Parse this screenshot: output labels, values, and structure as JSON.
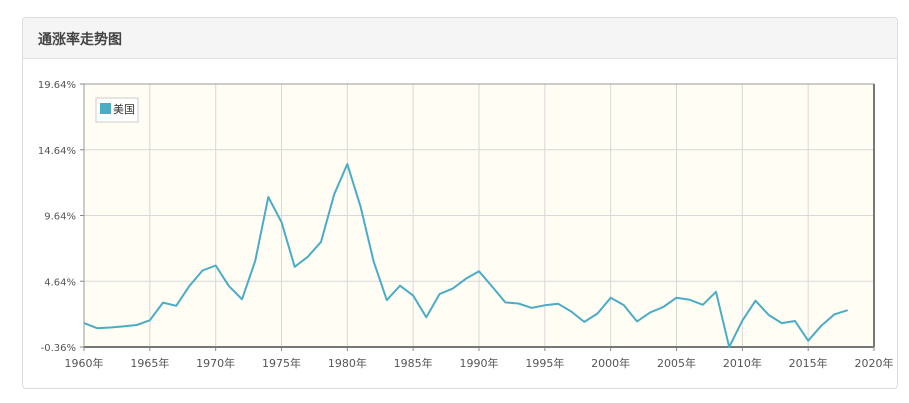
{
  "panel": {
    "title": "通涨率走势图"
  },
  "colors": {
    "line": "#4bacc6",
    "plot_bg": "#fffdf4",
    "grid": "#d8d8d8"
  },
  "chart_data": {
    "type": "line",
    "title": "",
    "xlabel": "",
    "ylabel": "",
    "xlim": [
      1960,
      2020
    ],
    "ylim": [
      -0.36,
      19.64
    ],
    "y_ticks": [
      "19.64%",
      "14.64%",
      "9.64%",
      "4.64%",
      "-0.36%"
    ],
    "y_tick_values": [
      19.64,
      14.64,
      9.64,
      4.64,
      -0.36
    ],
    "x_ticks": [
      "1960年",
      "1965年",
      "1970年",
      "1975年",
      "1980年",
      "1985年",
      "1990年",
      "1995年",
      "2000年",
      "2005年",
      "2010年",
      "2015年",
      "2020年"
    ],
    "x_tick_values": [
      1960,
      1965,
      1970,
      1975,
      1980,
      1985,
      1990,
      1995,
      2000,
      2005,
      2010,
      2015,
      2020
    ],
    "grid": true,
    "legend_position": "top-left",
    "series": [
      {
        "name": "美国",
        "x": [
          1960,
          1961,
          1962,
          1963,
          1964,
          1965,
          1966,
          1967,
          1968,
          1969,
          1970,
          1971,
          1972,
          1973,
          1974,
          1975,
          1976,
          1977,
          1978,
          1979,
          1980,
          1981,
          1982,
          1983,
          1984,
          1985,
          1986,
          1987,
          1988,
          1989,
          1990,
          1991,
          1992,
          1993,
          1994,
          1995,
          1996,
          1997,
          1998,
          1999,
          2000,
          2001,
          2002,
          2003,
          2004,
          2005,
          2006,
          2007,
          2008,
          2009,
          2010,
          2011,
          2012,
          2013,
          2014,
          2015,
          2016,
          2017,
          2018
        ],
        "values": [
          1.46,
          1.07,
          1.12,
          1.21,
          1.31,
          1.67,
          3.02,
          2.77,
          4.27,
          5.46,
          5.84,
          4.29,
          3.27,
          6.18,
          11.05,
          9.14,
          5.74,
          6.5,
          7.63,
          11.25,
          13.55,
          10.33,
          6.13,
          3.21,
          4.3,
          3.55,
          1.9,
          3.66,
          4.08,
          4.83,
          5.4,
          4.23,
          3.03,
          2.95,
          2.61,
          2.81,
          2.93,
          2.34,
          1.55,
          2.19,
          3.38,
          2.83,
          1.59,
          2.27,
          2.68,
          3.39,
          3.23,
          2.85,
          3.84,
          -0.36,
          1.64,
          3.16,
          2.07,
          1.46,
          1.62,
          0.12,
          1.26,
          2.13,
          2.44
        ]
      }
    ]
  }
}
